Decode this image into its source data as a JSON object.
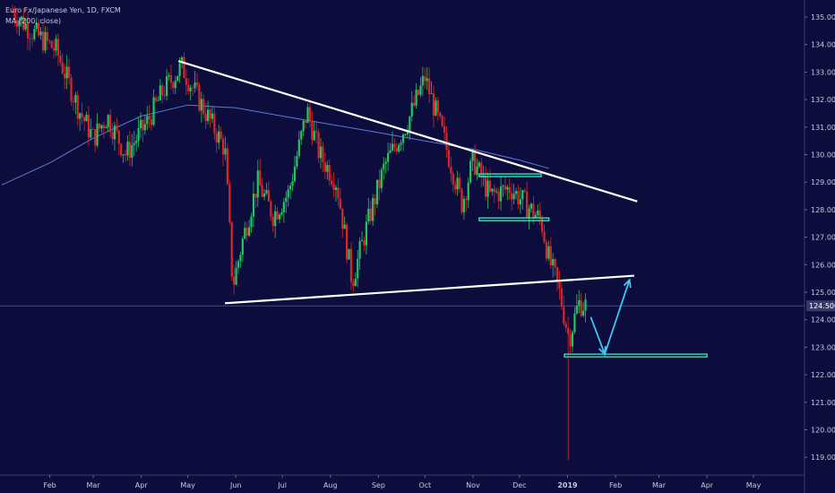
{
  "header": {
    "symbol": "Euro Fx/Japanese Yen, 1D, FXCM",
    "indicator": "MA (200, close)"
  },
  "colors": {
    "background": "#0d0d3d",
    "up": "#22c55e",
    "down": "#dc2626",
    "ma": "#5b7bd5",
    "trendline": "#ffffff",
    "zone": "#2ee6b0",
    "arrow": "#38c8f0",
    "axis_text": "#c8c8e0",
    "price_box": "#3a3a6a"
  },
  "chart_data": {
    "type": "candlestick",
    "x_ticks": [
      "Feb",
      "Mar",
      "Apr",
      "May",
      "Jun",
      "Jul",
      "Aug",
      "Sep",
      "Oct",
      "Nov",
      "Dec",
      "2019",
      "Feb",
      "Mar",
      "Apr",
      "May"
    ],
    "y_ticks": [
      "135.000",
      "134.000",
      "133.000",
      "132.000",
      "131.000",
      "130.000",
      "129.000",
      "128.000",
      "127.000",
      "126.000",
      "125.000",
      "124.000",
      "123.000",
      "122.000",
      "121.000",
      "120.000",
      "119.000"
    ],
    "ylim": [
      118.4,
      135.5
    ],
    "current_price": 124.506,
    "current_price_label": "124.506",
    "close_path": [
      [
        "2018-01-08",
        135.2
      ],
      [
        "2018-01-20",
        134.5
      ],
      [
        "2018-02-05",
        133.8
      ],
      [
        "2018-02-20",
        131.6
      ],
      [
        "2018-03-01",
        130.6
      ],
      [
        "2018-03-10",
        131.4
      ],
      [
        "2018-03-22",
        130.0
      ],
      [
        "2018-04-05",
        131.2
      ],
      [
        "2018-04-15",
        132.3
      ],
      [
        "2018-04-27",
        133.2
      ],
      [
        "2018-05-10",
        131.8
      ],
      [
        "2018-05-25",
        130.2
      ],
      [
        "2018-05-30",
        125.2
      ],
      [
        "2018-06-05",
        126.8
      ],
      [
        "2018-06-15",
        129.0
      ],
      [
        "2018-06-25",
        127.8
      ],
      [
        "2018-07-05",
        128.6
      ],
      [
        "2018-07-17",
        131.6
      ],
      [
        "2018-07-25",
        130.0
      ],
      [
        "2018-08-05",
        129.0
      ],
      [
        "2018-08-15",
        125.4
      ],
      [
        "2018-08-25",
        127.5
      ],
      [
        "2018-09-05",
        129.6
      ],
      [
        "2018-09-20",
        131.2
      ],
      [
        "2018-10-01",
        132.8
      ],
      [
        "2018-10-12",
        130.8
      ],
      [
        "2018-10-25",
        128.2
      ],
      [
        "2018-11-01",
        129.8
      ],
      [
        "2018-11-12",
        128.5
      ],
      [
        "2018-11-25",
        128.8
      ],
      [
        "2018-12-05",
        128.2
      ],
      [
        "2018-12-15",
        127.6
      ],
      [
        "2018-12-20",
        126.2
      ],
      [
        "2018-12-26",
        125.2
      ],
      [
        "2019-01-02",
        123.3
      ],
      [
        "2019-01-08",
        124.6
      ],
      [
        "2019-01-14",
        124.5
      ]
    ],
    "notable_low": [
      "2019-01-02",
      118.9
    ],
    "ma_path": [
      [
        "2018-01-01",
        128.9
      ],
      [
        "2018-02-01",
        129.7
      ],
      [
        "2018-03-01",
        130.6
      ],
      [
        "2018-04-01",
        131.4
      ],
      [
        "2018-05-01",
        131.8
      ],
      [
        "2018-06-01",
        131.7
      ],
      [
        "2018-07-01",
        131.4
      ],
      [
        "2018-08-01",
        131.1
      ],
      [
        "2018-09-01",
        130.8
      ],
      [
        "2018-10-01",
        130.5
      ],
      [
        "2018-11-01",
        130.2
      ],
      [
        "2018-12-01",
        129.8
      ],
      [
        "2018-12-20",
        129.5
      ]
    ],
    "annotations": {
      "upper_trendline": [
        [
          "2018-04-25",
          133.4
        ],
        [
          "2019-02-15",
          128.3
        ]
      ],
      "lower_trendline": [
        [
          "2018-05-25",
          124.6
        ],
        [
          "2019-02-13",
          125.6
        ]
      ],
      "zone_top": {
        "y": 129.25,
        "x0": "2018-11-05",
        "x1": "2018-12-15"
      },
      "zone_bottom": {
        "y": 127.65,
        "x0": "2018-11-05",
        "x1": "2018-12-20"
      },
      "support_zone": {
        "y": 122.7,
        "x0": "2018-12-30",
        "x1": "2019-04-01"
      },
      "arrow_path": [
        [
          "2019-01-16",
          124.1
        ],
        [
          "2019-01-25",
          122.75
        ],
        [
          "2019-02-10",
          125.45
        ]
      ]
    }
  }
}
